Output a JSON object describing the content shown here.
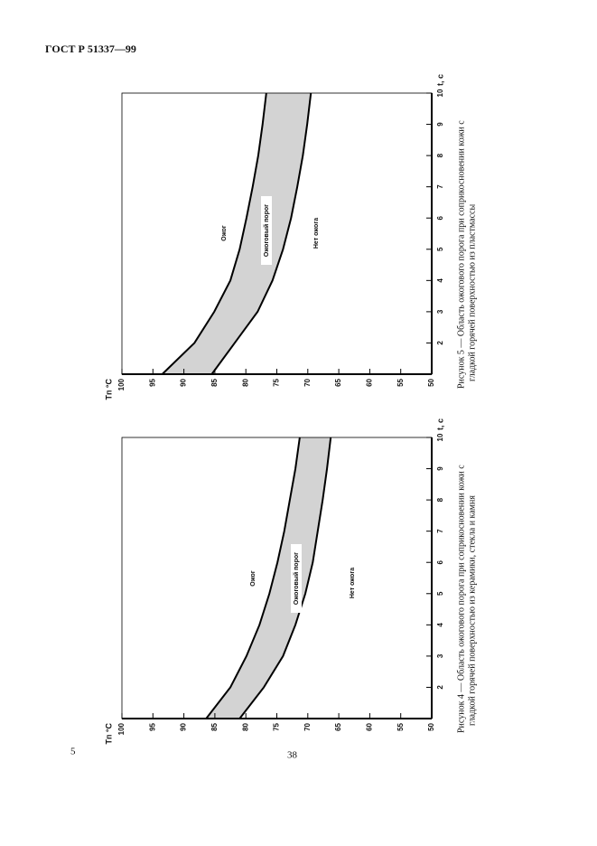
{
  "header": {
    "title": "ГОСТ Р 51337—99"
  },
  "chart_data": [
    {
      "type": "line",
      "figure": "Рисунок 5",
      "caption": [
        "Рисунок 5 — Область ожогового порога при соприкосновении кожи с",
        "гладкой горячей поверхностью из пластмассы"
      ],
      "xlabel": "t, с",
      "ylabel": "Tп °С",
      "x": [
        1,
        2,
        3,
        4,
        5,
        6,
        7,
        8,
        9,
        10
      ],
      "series": [
        {
          "color": "#000000",
          "values": [
            93.5,
            88.3,
            85.1,
            82.5,
            81,
            79.9,
            78.9,
            78,
            77.3,
            76.7
          ]
        },
        {
          "color": "#000000",
          "values": [
            85.5,
            81.8,
            78.1,
            75.7,
            74,
            72.7,
            71.7,
            70.8,
            70.1,
            69.5
          ]
        }
      ],
      "band_color": "#d3d3d3",
      "annotations": [
        "Ожог",
        "Ожоговый порог",
        "Нет ожога"
      ],
      "xlim": [
        1,
        10
      ],
      "xticks": [
        2,
        3,
        4,
        5,
        6,
        7,
        8,
        9,
        10
      ],
      "ylim": [
        50,
        100
      ],
      "yticks": [
        100,
        95,
        90,
        85,
        80,
        75,
        70,
        65,
        60,
        55,
        50
      ]
    },
    {
      "type": "line",
      "figure": "Рисунок 4",
      "caption": [
        "Рисунок 4 — Область ожогового порога при соприкосновении кожи с",
        "гладкой горячей поверхностью из керамики, стекла и камня"
      ],
      "xlabel": "t, с",
      "ylabel": "Tп °С",
      "x": [
        1,
        2,
        3,
        4,
        5,
        6,
        7,
        8,
        9,
        10
      ],
      "series": [
        {
          "color": "#000000",
          "values": [
            86.4,
            82.5,
            79.9,
            77.8,
            76.2,
            74.9,
            73.8,
            72.9,
            72,
            71.3
          ]
        },
        {
          "color": "#000000",
          "values": [
            81,
            77.1,
            74,
            72,
            70.4,
            69.2,
            68.4,
            67.6,
            66.9,
            66.3
          ]
        }
      ],
      "band_color": "#d3d3d3",
      "annotations": [
        "Ожог",
        "Ожоговый порог",
        "Нет ожога"
      ],
      "xlim": [
        1,
        10
      ],
      "xticks": [
        2,
        3,
        4,
        5,
        6,
        7,
        8,
        9,
        10
      ],
      "ylim": [
        50,
        100
      ],
      "yticks": [
        100,
        95,
        90,
        85,
        80,
        75,
        70,
        65,
        60,
        55,
        50
      ]
    }
  ],
  "footer": {
    "side_number": "5",
    "page_number": "38"
  }
}
